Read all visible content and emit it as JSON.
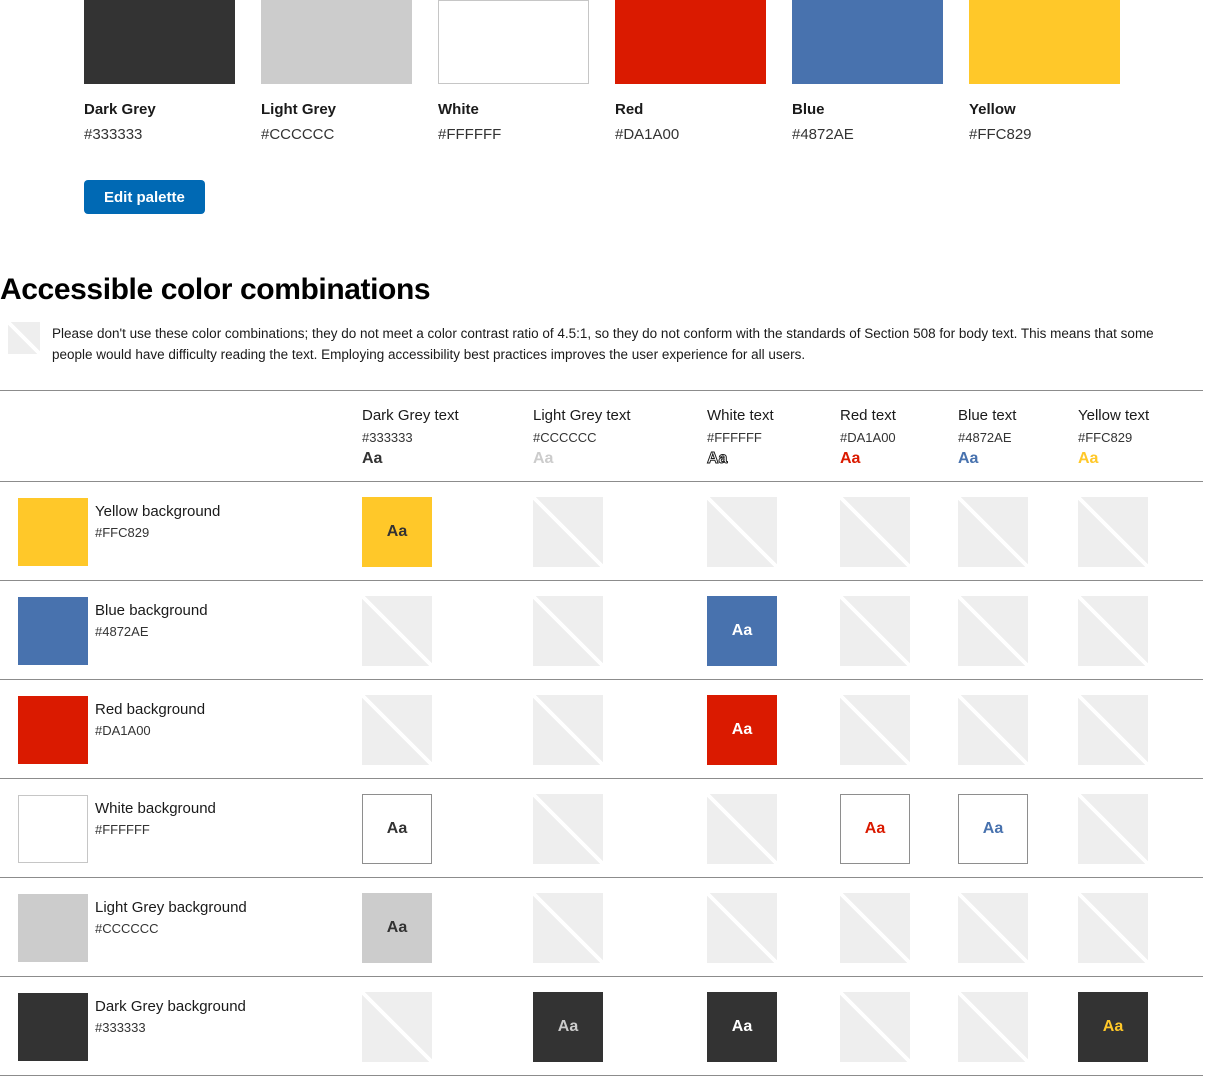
{
  "palette": {
    "swatches": [
      {
        "name": "Dark Grey",
        "hex": "#333333"
      },
      {
        "name": "Light Grey",
        "hex": "#CCCCCC"
      },
      {
        "name": "White",
        "hex": "#FFFFFF",
        "bordered": true
      },
      {
        "name": "Red",
        "hex": "#DA1A00"
      },
      {
        "name": "Blue",
        "hex": "#4872AE"
      },
      {
        "name": "Yellow",
        "hex": "#FFC829"
      }
    ],
    "edit_button_label": "Edit palette",
    "accent_color": "#0069B4"
  },
  "section": {
    "heading": "Accessible color combinations",
    "note": "Please don't use these color combinations; they do not meet a color contrast ratio of 4.5:1, so they do not conform with the standards of Section 508 for body text. This means that some people would have difficulty reading the text. Employing accessibility best practices improves the user experience for all users."
  },
  "sample_text": "Aa",
  "table": {
    "columns": [
      {
        "label": "Dark Grey text",
        "hex": "#333333",
        "color": "#333333"
      },
      {
        "label": "Light Grey text",
        "hex": "#CCCCCC",
        "color": "#CCCCCC"
      },
      {
        "label": "White text",
        "hex": "#FFFFFF",
        "color": "#FFFFFF",
        "outlined": true
      },
      {
        "label": "Red text",
        "hex": "#DA1A00",
        "color": "#DA1A00"
      },
      {
        "label": "Blue text",
        "hex": "#4872AE",
        "color": "#4872AE"
      },
      {
        "label": "Yellow text",
        "hex": "#FFC829",
        "color": "#FFC829"
      }
    ],
    "rows": [
      {
        "label": "Yellow background",
        "hex": "#FFC829",
        "cells": [
          {
            "pass": true,
            "bg": "#FFC829",
            "fg": "#333333"
          },
          {
            "pass": false
          },
          {
            "pass": false
          },
          {
            "pass": false
          },
          {
            "pass": false
          },
          {
            "pass": false
          }
        ]
      },
      {
        "label": "Blue background",
        "hex": "#4872AE",
        "cells": [
          {
            "pass": false
          },
          {
            "pass": false
          },
          {
            "pass": true,
            "bg": "#4872AE",
            "fg": "#FFFFFF"
          },
          {
            "pass": false
          },
          {
            "pass": false
          },
          {
            "pass": false
          }
        ]
      },
      {
        "label": "Red background",
        "hex": "#DA1A00",
        "cells": [
          {
            "pass": false
          },
          {
            "pass": false
          },
          {
            "pass": true,
            "bg": "#DA1A00",
            "fg": "#FFFFFF"
          },
          {
            "pass": false
          },
          {
            "pass": false
          },
          {
            "pass": false
          }
        ]
      },
      {
        "label": "White background",
        "hex": "#FFFFFF",
        "bordered": true,
        "cells": [
          {
            "pass": true,
            "bg": "#FFFFFF",
            "fg": "#333333",
            "bordered": true
          },
          {
            "pass": false
          },
          {
            "pass": false
          },
          {
            "pass": true,
            "bg": "#FFFFFF",
            "fg": "#DA1A00",
            "bordered": true
          },
          {
            "pass": true,
            "bg": "#FFFFFF",
            "fg": "#4872AE",
            "bordered": true
          },
          {
            "pass": false
          }
        ]
      },
      {
        "label": "Light Grey background",
        "hex": "#CCCCCC",
        "cells": [
          {
            "pass": true,
            "bg": "#CCCCCC",
            "fg": "#333333"
          },
          {
            "pass": false
          },
          {
            "pass": false
          },
          {
            "pass": false
          },
          {
            "pass": false
          },
          {
            "pass": false
          }
        ]
      },
      {
        "label": "Dark Grey background",
        "hex": "#333333",
        "cells": [
          {
            "pass": false
          },
          {
            "pass": true,
            "bg": "#333333",
            "fg": "#CCCCCC"
          },
          {
            "pass": true,
            "bg": "#333333",
            "fg": "#FFFFFF"
          },
          {
            "pass": false
          },
          {
            "pass": false
          },
          {
            "pass": true,
            "bg": "#333333",
            "fg": "#FFC829"
          }
        ]
      }
    ]
  }
}
